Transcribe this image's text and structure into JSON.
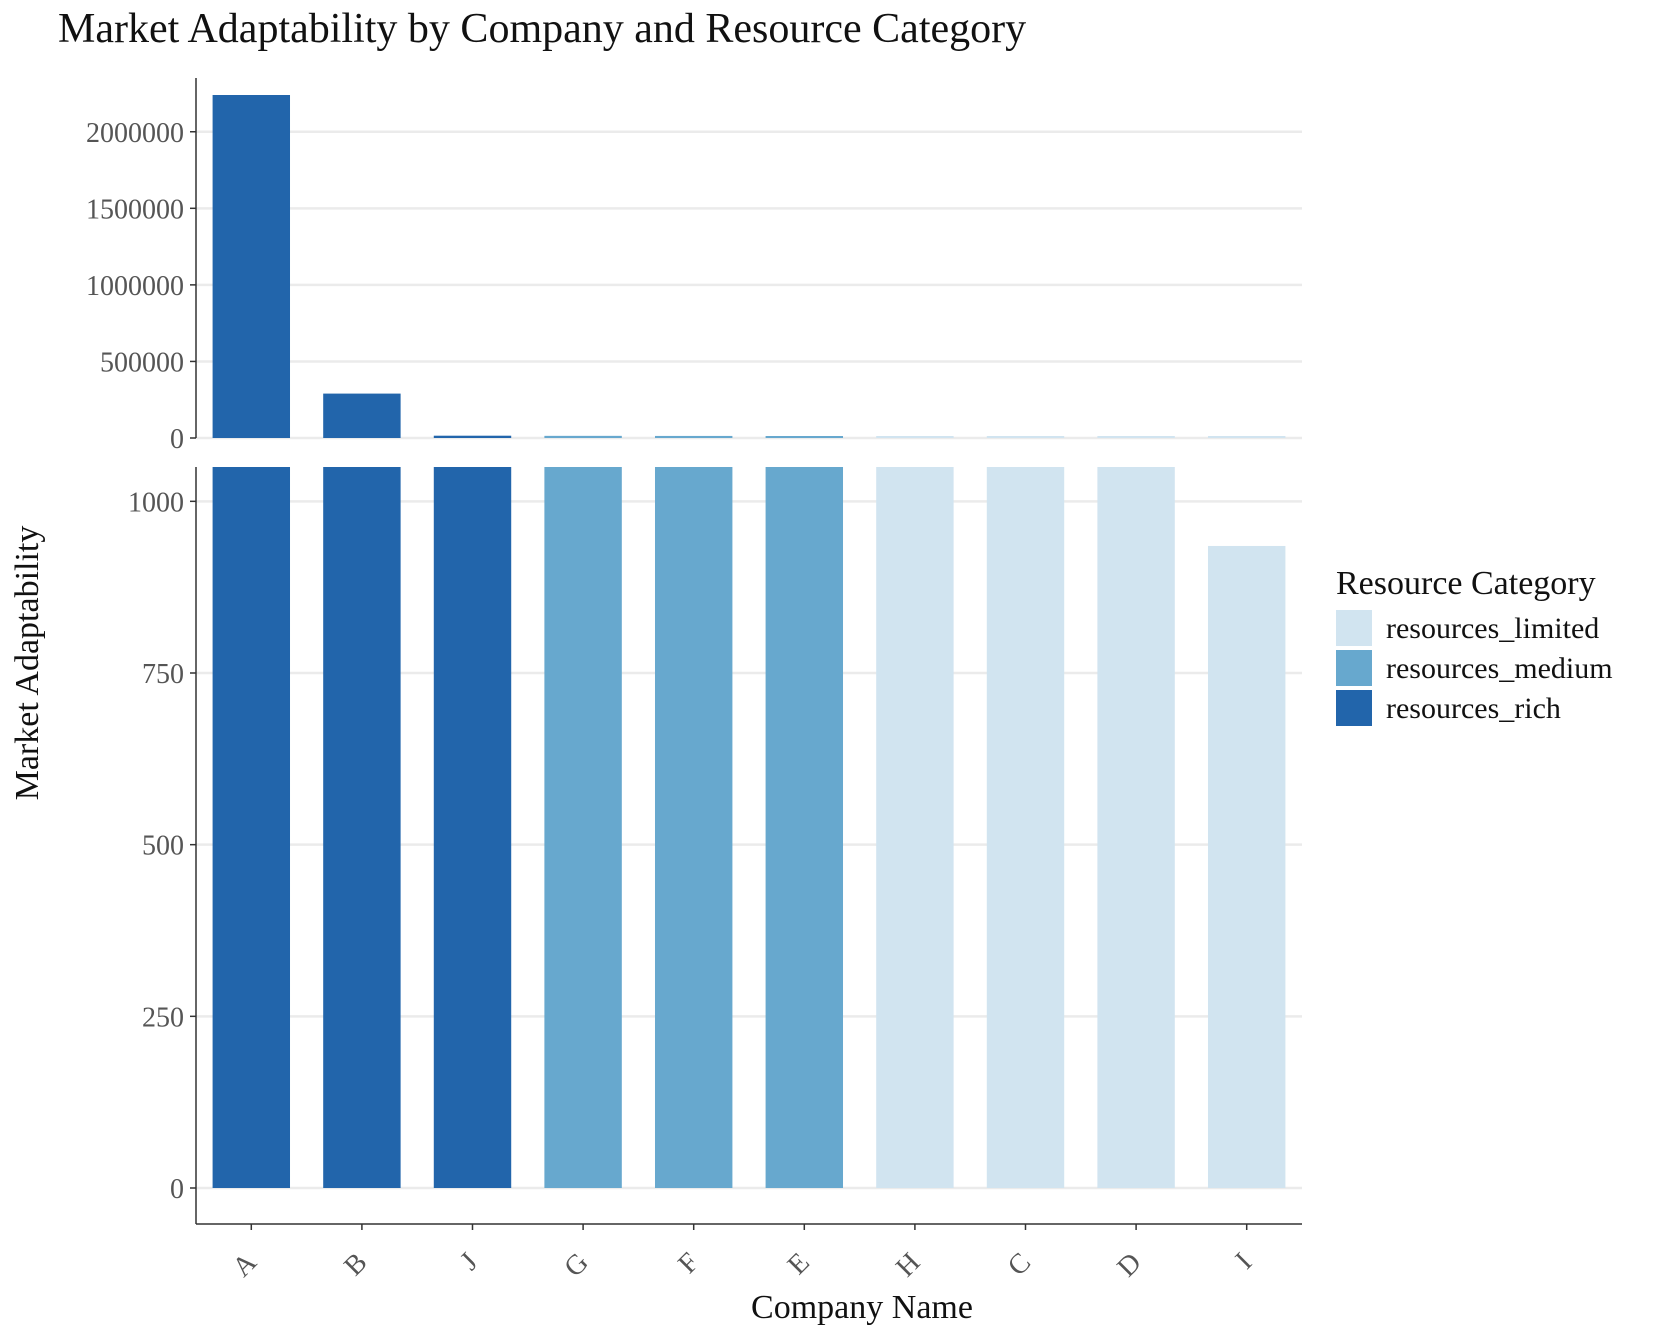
{
  "chart_data": {
    "type": "bar",
    "title": "Market Adaptability by Company and Resource Category",
    "xlabel": "Company Name",
    "ylabel": "Market Adaptability",
    "categories": [
      "A",
      "B",
      "J",
      "G",
      "F",
      "E",
      "H",
      "C",
      "D",
      "I"
    ],
    "values": [
      2240000,
      290000,
      15000,
      14000,
      13500,
      13000,
      8000,
      7000,
      5000,
      935
    ],
    "resource_category": [
      "resources_rich",
      "resources_rich",
      "resources_rich",
      "resources_medium",
      "resources_medium",
      "resources_medium",
      "resources_limited",
      "resources_limited",
      "resources_limited",
      "resources_limited"
    ],
    "legend": {
      "title": "Resource Category",
      "position": "right",
      "entries": [
        {
          "name": "resources_limited",
          "color": "#d1e4f0"
        },
        {
          "name": "resources_medium",
          "color": "#67a8ce"
        },
        {
          "name": "resources_rich",
          "color": "#2265ab"
        }
      ]
    },
    "axis_break": true,
    "upper_panel": {
      "ylim": [
        0,
        2240000
      ],
      "ticks": [
        0,
        500000,
        1000000,
        1500000,
        2000000
      ]
    },
    "lower_panel": {
      "ylim": [
        0,
        1050
      ],
      "ticks": [
        0,
        250,
        500,
        750,
        1000
      ]
    },
    "grid": "horizontal major"
  }
}
